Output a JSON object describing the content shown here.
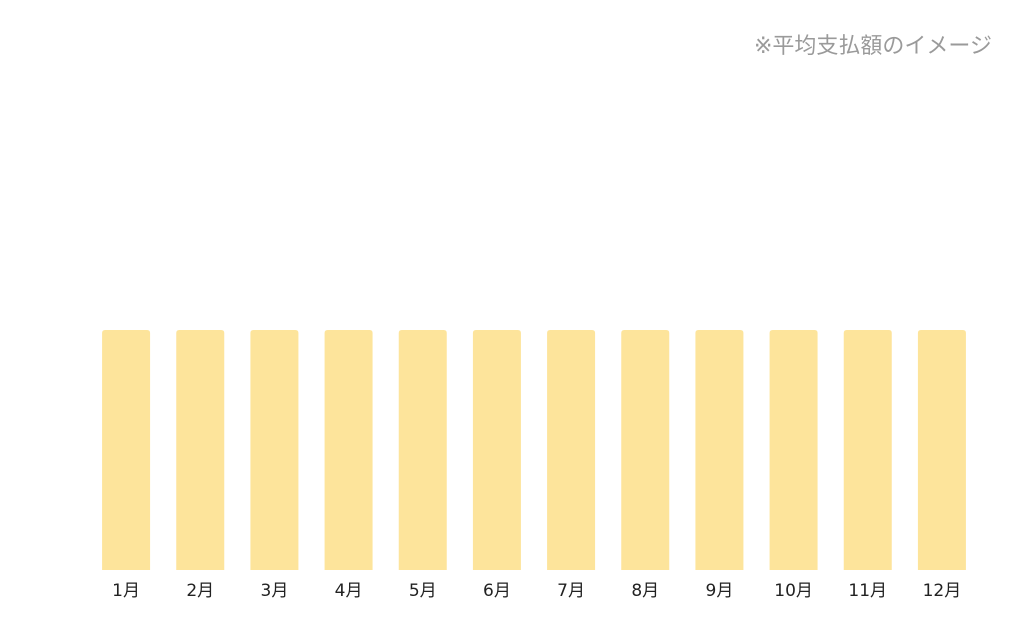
{
  "note": "※平均支払額のイメージ",
  "colors": {
    "bar": "#fde49b",
    "note": "#9a9a9a",
    "tick_label": "#222222"
  },
  "chart_data": {
    "type": "bar",
    "title": "",
    "xlabel": "",
    "ylabel": "",
    "categories": [
      "1月",
      "2月",
      "3月",
      "4月",
      "5月",
      "6月",
      "7月",
      "8月",
      "9月",
      "10月",
      "11月",
      "12月"
    ],
    "values": [
      1,
      1,
      1,
      1,
      1,
      1,
      1,
      1,
      1,
      1,
      1,
      1
    ],
    "ylim": [
      0,
      2.3
    ],
    "grid": false,
    "legend": "none"
  }
}
